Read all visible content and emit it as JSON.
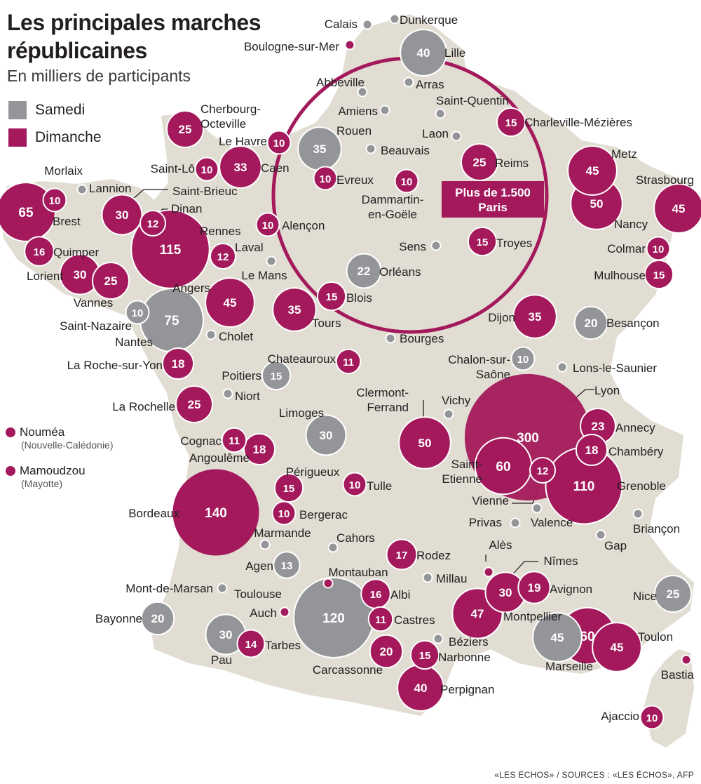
{
  "title_line1": "Les principales marches",
  "title_line2": "républicaines",
  "subtitle": "En milliers de participants",
  "legend": [
    {
      "label": "Samedi",
      "color": "#939598"
    },
    {
      "label": "Dimanche",
      "color": "#a3195b"
    }
  ],
  "colors": {
    "samedi": "#939598",
    "dimanche": "#a3195b",
    "overlap": "#6b1040",
    "land": "#e1ddd3"
  },
  "overseas": [
    {
      "name": "Nouméa",
      "sub": "(Nouvelle-Calédonie)"
    },
    {
      "name": "Mamoudzou",
      "sub": "(Mayotte)"
    }
  ],
  "paris": {
    "line1": "Plus de 1.500",
    "line2": "Paris"
  },
  "footer": "«LES ÉCHOS» / SOURCES : «LES ÉCHOS», AFP",
  "cities": [
    {
      "name": "Lille",
      "day": "samedi",
      "value": 40
    },
    {
      "name": "Calais",
      "day": "samedi"
    },
    {
      "name": "Dunkerque",
      "day": "samedi"
    },
    {
      "name": "Boulogne-sur-Mer",
      "day": "dimanche"
    },
    {
      "name": "Abbeville",
      "day": "samedi"
    },
    {
      "name": "Arras",
      "day": "samedi"
    },
    {
      "name": "Amiens",
      "day": "samedi"
    },
    {
      "name": "Saint-Quentin",
      "day": "samedi"
    },
    {
      "name": "Laon",
      "day": "samedi"
    },
    {
      "name": "Charleville-Mézières",
      "day": "dimanche",
      "value": 15
    },
    {
      "name": "Cherbourg-Octeville",
      "day": "dimanche",
      "value": 25
    },
    {
      "name": "Le Havre",
      "day": "dimanche",
      "value": 10
    },
    {
      "name": "Rouen",
      "day": "samedi",
      "value": 35
    },
    {
      "name": "Beauvais",
      "day": "samedi"
    },
    {
      "name": "Saint-Lô",
      "day": "dimanche",
      "value": 10
    },
    {
      "name": "Caen",
      "day": "dimanche",
      "value": 33
    },
    {
      "name": "Evreux",
      "day": "dimanche",
      "value": 10
    },
    {
      "name": "Dammartin-en-Goële",
      "day": "dimanche",
      "value": 10
    },
    {
      "name": "Reims",
      "day": "dimanche",
      "value": 25
    },
    {
      "name": "Metz",
      "day": "dimanche",
      "value": 45
    },
    {
      "name": "Nancy",
      "day": "dimanche",
      "value": 50
    },
    {
      "name": "Strasbourg",
      "day": "dimanche",
      "value": 45
    },
    {
      "name": "Morlaix",
      "day": "dimanche",
      "value": 10
    },
    {
      "name": "Lannion",
      "day": "samedi"
    },
    {
      "name": "Brest",
      "day": "dimanche",
      "value": 65
    },
    {
      "name": "Saint-Brieuc",
      "day": "dimanche",
      "value": 30
    },
    {
      "name": "Dinan",
      "day": "dimanche",
      "value": 12
    },
    {
      "name": "Rennes",
      "day": "dimanche",
      "value": 115
    },
    {
      "name": "Alençon",
      "day": "dimanche",
      "value": 10
    },
    {
      "name": "Troyes",
      "day": "dimanche",
      "value": 15
    },
    {
      "name": "Sens",
      "day": "samedi"
    },
    {
      "name": "Quimper",
      "day": "dimanche",
      "value": 16
    },
    {
      "name": "Lorient",
      "day": "dimanche",
      "value": 30
    },
    {
      "name": "Vannes",
      "day": "dimanche",
      "value": 25
    },
    {
      "name": "Laval",
      "day": "dimanche",
      "value": 12
    },
    {
      "name": "Le Mans",
      "day": "samedi"
    },
    {
      "name": "Orléans",
      "day": "samedi",
      "value": 22
    },
    {
      "name": "Colmar",
      "day": "dimanche",
      "value": 10
    },
    {
      "name": "Mulhouse",
      "day": "dimanche",
      "value": 15
    },
    {
      "name": "Angers",
      "day": "dimanche",
      "value": 45
    },
    {
      "name": "Tours",
      "day": "dimanche",
      "value": 35
    },
    {
      "name": "Blois",
      "day": "dimanche",
      "value": 15
    },
    {
      "name": "Saint-Nazaire",
      "day": "samedi",
      "value": 10
    },
    {
      "name": "Nantes",
      "day": "samedi",
      "value": 75
    },
    {
      "name": "Cholet",
      "day": "samedi"
    },
    {
      "name": "Dijon",
      "day": "dimanche",
      "value": 35
    },
    {
      "name": "Besançon",
      "day": "samedi",
      "value": 20
    },
    {
      "name": "Bourges",
      "day": "samedi"
    },
    {
      "name": "La Roche-sur-Yon",
      "day": "dimanche",
      "value": 18
    },
    {
      "name": "Chateauroux",
      "day": "dimanche",
      "value": 11
    },
    {
      "name": "Chalon-sur-Saône",
      "day": "samedi",
      "value": 10
    },
    {
      "name": "Lons-le-Saunier",
      "day": "samedi"
    },
    {
      "name": "Poitiers",
      "day": "samedi",
      "value": 15
    },
    {
      "name": "Niort",
      "day": "samedi"
    },
    {
      "name": "La Rochelle",
      "day": "dimanche",
      "value": 25
    },
    {
      "name": "Clermont-Ferrand",
      "day": "dimanche",
      "value": 50
    },
    {
      "name": "Vichy",
      "day": "samedi"
    },
    {
      "name": "Lyon",
      "day": "dimanche",
      "value": 300
    },
    {
      "name": "Annecy",
      "day": "dimanche",
      "value": 23
    },
    {
      "name": "Chambéry",
      "day": "dimanche",
      "value": 18
    },
    {
      "name": "Limoges",
      "day": "samedi",
      "value": 30
    },
    {
      "name": "Cognac",
      "day": "dimanche",
      "value": 11
    },
    {
      "name": "Angoulême",
      "day": "dimanche",
      "value": 18
    },
    {
      "name": "Saint-Etienne",
      "day": "dimanche",
      "value": 60
    },
    {
      "name": "Vienne",
      "day": "dimanche",
      "value": 12
    },
    {
      "name": "Grenoble",
      "day": "dimanche",
      "value": 110
    },
    {
      "name": "Périgueux",
      "day": "dimanche",
      "value": 15
    },
    {
      "name": "Tulle",
      "day": "dimanche",
      "value": 10
    },
    {
      "name": "Bordeaux",
      "day": "dimanche",
      "value": 140
    },
    {
      "name": "Bergerac",
      "day": "dimanche",
      "value": 10
    },
    {
      "name": "Privas",
      "day": "samedi"
    },
    {
      "name": "Valence",
      "day": "samedi"
    },
    {
      "name": "Briançon",
      "day": "samedi"
    },
    {
      "name": "Gap",
      "day": "samedi"
    },
    {
      "name": "Marmande",
      "day": "samedi"
    },
    {
      "name": "Cahors",
      "day": "samedi"
    },
    {
      "name": "Rodez",
      "day": "dimanche",
      "value": 17
    },
    {
      "name": "Alès",
      "day": "dimanche"
    },
    {
      "name": "Agen",
      "day": "samedi",
      "value": 13
    },
    {
      "name": "Montauban",
      "day": "dimanche"
    },
    {
      "name": "Millau",
      "day": "samedi"
    },
    {
      "name": "Nîmes",
      "day": "dimanche",
      "value": 30
    },
    {
      "name": "Avignon",
      "day": "dimanche",
      "value": 19
    },
    {
      "name": "Mont-de-Marsan",
      "day": "samedi"
    },
    {
      "name": "Toulouse",
      "day": "samedi",
      "value": 120
    },
    {
      "name": "Albi",
      "day": "dimanche",
      "value": 16
    },
    {
      "name": "Nice",
      "day": "samedi",
      "value": 25
    },
    {
      "name": "Auch",
      "day": "dimanche"
    },
    {
      "name": "Castres",
      "day": "dimanche",
      "value": 11
    },
    {
      "name": "Montpellier",
      "day": "dimanche",
      "value": 47
    },
    {
      "name": "Bayonne",
      "day": "samedi",
      "value": 20
    },
    {
      "name": "Pau",
      "day": "samedi",
      "value": 30
    },
    {
      "name": "Tarbes",
      "day": "dimanche",
      "value": 14
    },
    {
      "name": "Carcassonne",
      "day": "dimanche",
      "value": 20
    },
    {
      "name": "Narbonne",
      "day": "dimanche",
      "value": 15
    },
    {
      "name": "Béziers",
      "day": "samedi"
    },
    {
      "name": "Marseille",
      "day": "samedi",
      "value": 45
    },
    {
      "name": "Marseille",
      "day": "dimanche",
      "value": 60
    },
    {
      "name": "Toulon",
      "day": "dimanche",
      "value": 45
    },
    {
      "name": "Bastia",
      "day": "dimanche"
    },
    {
      "name": "Perpignan",
      "day": "dimanche",
      "value": 40
    },
    {
      "name": "Ajaccio",
      "day": "dimanche",
      "value": 10
    }
  ]
}
